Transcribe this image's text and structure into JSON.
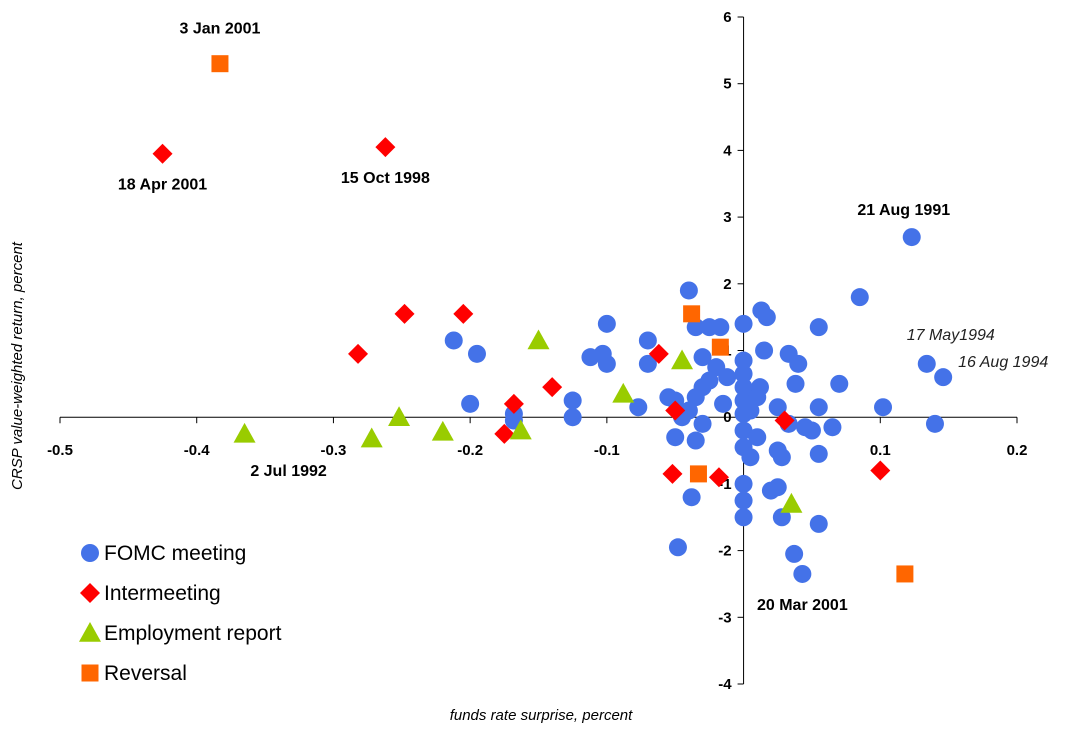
{
  "chart_data": {
    "type": "scatter",
    "xlabel": "funds rate surprise, percent",
    "ylabel": "CRSP value-weighted return, percent",
    "xlim": [
      -0.5,
      0.2
    ],
    "ylim": [
      -4,
      6
    ],
    "xticks": [
      -0.5,
      -0.4,
      -0.3,
      -0.2,
      -0.1,
      0,
      0.1,
      0.2
    ],
    "xtick_labels": [
      "-0.5",
      "-0.4",
      "-0.3",
      "-0.2",
      "-0.1",
      "0",
      "0.1",
      "0.2"
    ],
    "yticks": [
      -4,
      -3,
      -2,
      -1,
      0,
      1,
      2,
      3,
      4,
      5,
      6
    ],
    "ytick_labels": [
      "-4",
      "-3",
      "-2",
      "-1",
      "0",
      "1",
      "2",
      "3",
      "4",
      "5",
      "6"
    ],
    "grid": false,
    "legend_position": "bottom-left",
    "series": [
      {
        "name": "FOMC meeting",
        "marker": "circle",
        "color": "#4472E8",
        "points": [
          [
            0.123,
            2.7
          ],
          [
            0.085,
            1.8
          ],
          [
            0.134,
            0.8
          ],
          [
            0.146,
            0.6
          ],
          [
            0.102,
            0.15
          ],
          [
            0.14,
            -0.1
          ],
          [
            -0.212,
            1.15
          ],
          [
            -0.195,
            0.95
          ],
          [
            -0.2,
            0.2
          ],
          [
            -0.168,
            0.05
          ],
          [
            -0.168,
            -0.05
          ],
          [
            -0.1,
            1.4
          ],
          [
            -0.103,
            0.95
          ],
          [
            -0.1,
            0.8
          ],
          [
            -0.112,
            0.9
          ],
          [
            -0.125,
            0.25
          ],
          [
            -0.125,
            0.0
          ],
          [
            -0.077,
            0.15
          ],
          [
            -0.07,
            1.15
          ],
          [
            -0.07,
            0.8
          ],
          [
            -0.055,
            0.3
          ],
          [
            -0.05,
            0.25
          ],
          [
            -0.04,
            1.9
          ],
          [
            -0.035,
            1.35
          ],
          [
            -0.025,
            1.35
          ],
          [
            -0.017,
            1.35
          ],
          [
            -0.03,
            0.9
          ],
          [
            -0.02,
            0.75
          ],
          [
            -0.012,
            0.6
          ],
          [
            -0.025,
            0.55
          ],
          [
            -0.03,
            0.45
          ],
          [
            -0.035,
            0.3
          ],
          [
            -0.04,
            0.1
          ],
          [
            -0.045,
            0.0
          ],
          [
            -0.03,
            -0.1
          ],
          [
            -0.05,
            -0.3
          ],
          [
            -0.035,
            -0.35
          ],
          [
            -0.038,
            -1.2
          ],
          [
            -0.048,
            -1.95
          ],
          [
            -0.015,
            0.2
          ],
          [
            0.0,
            1.4
          ],
          [
            0.0,
            0.85
          ],
          [
            0.0,
            0.65
          ],
          [
            0.0,
            0.45
          ],
          [
            0.0,
            0.25
          ],
          [
            0.0,
            0.05
          ],
          [
            0.0,
            -0.2
          ],
          [
            0.0,
            -0.45
          ],
          [
            0.0,
            -1.0
          ],
          [
            0.0,
            -1.25
          ],
          [
            0.0,
            -1.5
          ],
          [
            0.005,
            -0.6
          ],
          [
            0.013,
            1.6
          ],
          [
            0.017,
            1.5
          ],
          [
            0.015,
            1.0
          ],
          [
            0.012,
            0.45
          ],
          [
            0.02,
            -1.1
          ],
          [
            0.025,
            -1.05
          ],
          [
            0.025,
            0.15
          ],
          [
            0.025,
            -0.5
          ],
          [
            0.028,
            -0.6
          ],
          [
            0.028,
            -1.5
          ],
          [
            0.033,
            0.95
          ],
          [
            0.04,
            0.8
          ],
          [
            0.038,
            0.5
          ],
          [
            0.033,
            -0.1
          ],
          [
            0.045,
            -0.15
          ],
          [
            0.037,
            -2.05
          ],
          [
            0.043,
            -2.35
          ],
          [
            0.055,
            1.35
          ],
          [
            0.055,
            0.15
          ],
          [
            0.05,
            -0.2
          ],
          [
            0.055,
            -0.55
          ],
          [
            0.055,
            -1.6
          ],
          [
            0.065,
            -0.15
          ],
          [
            0.07,
            0.5
          ],
          [
            0.01,
            0.3
          ],
          [
            0.005,
            0.1
          ],
          [
            0.01,
            -0.3
          ]
        ]
      },
      {
        "name": "Intermeeting",
        "marker": "diamond",
        "color": "#FF0000",
        "points": [
          [
            -0.425,
            3.95
          ],
          [
            -0.262,
            4.05
          ],
          [
            -0.248,
            1.55
          ],
          [
            -0.205,
            1.55
          ],
          [
            -0.282,
            0.95
          ],
          [
            -0.168,
            0.2
          ],
          [
            -0.175,
            -0.25
          ],
          [
            -0.14,
            0.45
          ],
          [
            -0.062,
            0.95
          ],
          [
            -0.05,
            0.1
          ],
          [
            -0.052,
            -0.85
          ],
          [
            -0.018,
            -0.9
          ],
          [
            0.03,
            -0.05
          ],
          [
            0.1,
            -0.8
          ]
        ]
      },
      {
        "name": "Employment report",
        "marker": "triangle",
        "color": "#99CC00",
        "points": [
          [
            -0.365,
            -0.25
          ],
          [
            -0.272,
            -0.32
          ],
          [
            -0.252,
            0.0
          ],
          [
            -0.22,
            -0.22
          ],
          [
            -0.163,
            -0.2
          ],
          [
            -0.15,
            1.15
          ],
          [
            -0.088,
            0.35
          ],
          [
            -0.045,
            0.85
          ],
          [
            0.035,
            -1.3
          ]
        ]
      },
      {
        "name": "Reversal",
        "marker": "square",
        "color": "#FF6600",
        "points": [
          [
            -0.383,
            5.3
          ],
          [
            -0.038,
            1.55
          ],
          [
            -0.017,
            1.05
          ],
          [
            -0.033,
            -0.85
          ],
          [
            0.118,
            -2.35
          ]
        ]
      }
    ],
    "annotations": [
      {
        "text": "3 Jan 2001",
        "x": -0.383,
        "y": 5.3,
        "style": "bold",
        "anchor": "above"
      },
      {
        "text": "18 Apr 2001",
        "x": -0.425,
        "y": 3.95,
        "style": "bold",
        "anchor": "below"
      },
      {
        "text": "15 Oct 1998",
        "x": -0.262,
        "y": 4.05,
        "style": "bold",
        "anchor": "below"
      },
      {
        "text": "21 Aug 1991",
        "x": 0.123,
        "y": 2.7,
        "style": "bold",
        "anchor": "above-left"
      },
      {
        "text": "17 May1994",
        "x": 0.134,
        "y": 0.8,
        "style": "italic",
        "anchor": "above"
      },
      {
        "text": "16 Aug 1994",
        "x": 0.146,
        "y": 0.6,
        "style": "italic",
        "anchor": "below-right"
      },
      {
        "text": "2 Jul 1992",
        "x": -0.365,
        "y": -0.25,
        "style": "bold",
        "anchor": "below-right"
      },
      {
        "text": "20 Mar 2001",
        "x": 0.043,
        "y": -2.35,
        "style": "bold",
        "anchor": "below"
      }
    ]
  }
}
